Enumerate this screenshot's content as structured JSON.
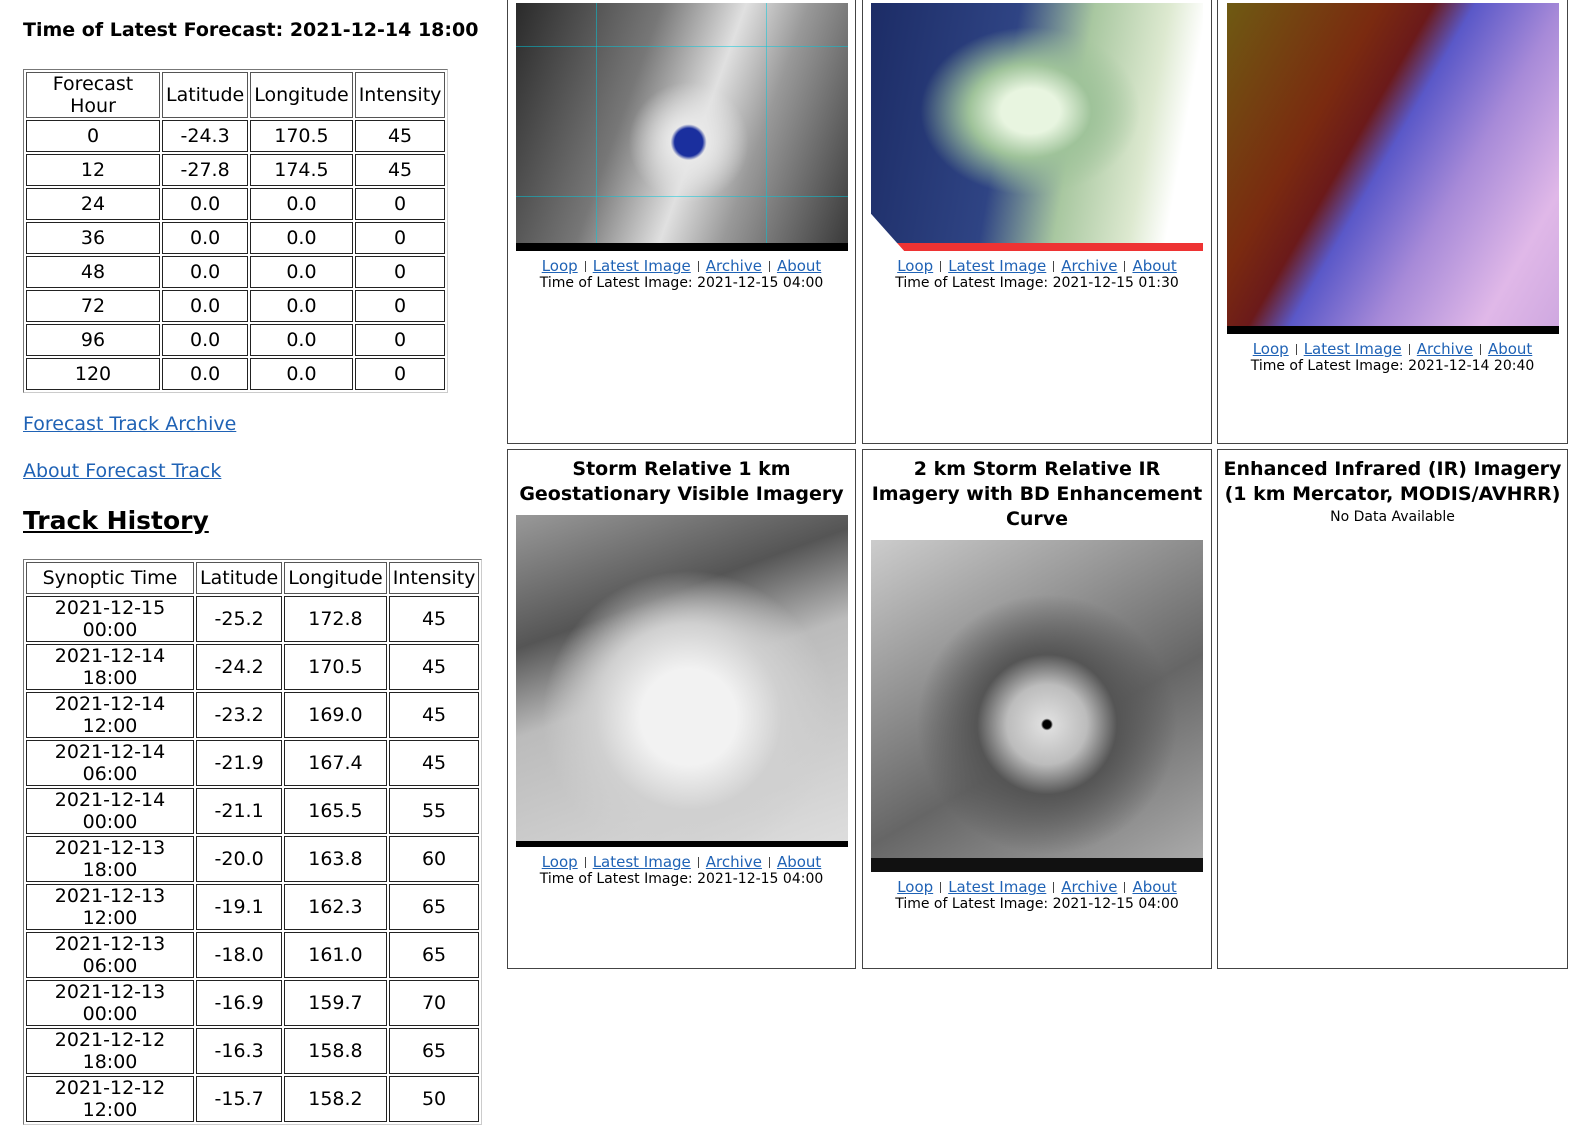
{
  "forecast": {
    "heading": "Time of Latest Forecast: 2021-12-14 18:00",
    "table": {
      "columns": [
        "Forecast Hour",
        "Latitude",
        "Longitude",
        "Intensity"
      ],
      "rows": [
        [
          "0",
          "-24.3",
          "170.5",
          "45"
        ],
        [
          "12",
          "-27.8",
          "174.5",
          "45"
        ],
        [
          "24",
          "0.0",
          "0.0",
          "0"
        ],
        [
          "36",
          "0.0",
          "0.0",
          "0"
        ],
        [
          "48",
          "0.0",
          "0.0",
          "0"
        ],
        [
          "72",
          "0.0",
          "0.0",
          "0"
        ],
        [
          "96",
          "0.0",
          "0.0",
          "0"
        ],
        [
          "120",
          "0.0",
          "0.0",
          "0"
        ]
      ]
    }
  },
  "links": [
    "Forecast Track Archive",
    "About Forecast Track"
  ],
  "track_history": {
    "title": "Track History",
    "table": {
      "columns": [
        "Synoptic Time",
        "Latitude",
        "Longitude",
        "Intensity"
      ],
      "rows": [
        [
          "2021-12-15 00:00",
          "-25.2",
          "172.8",
          "45"
        ],
        [
          "2021-12-14 18:00",
          "-24.2",
          "170.5",
          "45"
        ],
        [
          "2021-12-14 12:00",
          "-23.2",
          "169.0",
          "45"
        ],
        [
          "2021-12-14 06:00",
          "-21.9",
          "167.4",
          "45"
        ],
        [
          "2021-12-14 00:00",
          "-21.1",
          "165.5",
          "55"
        ],
        [
          "2021-12-13 18:00",
          "-20.0",
          "163.8",
          "60"
        ],
        [
          "2021-12-13 12:00",
          "-19.1",
          "162.3",
          "65"
        ],
        [
          "2021-12-13 06:00",
          "-18.0",
          "161.0",
          "65"
        ],
        [
          "2021-12-13 00:00",
          "-16.9",
          "159.7",
          "70"
        ],
        [
          "2021-12-12 18:00",
          "-16.3",
          "158.8",
          "65"
        ],
        [
          "2021-12-12 12:00",
          "-15.7",
          "158.2",
          "50"
        ]
      ]
    }
  },
  "panels": [
    {
      "links": [
        "Loop",
        "Latest Image",
        "Archive",
        "About"
      ],
      "time": "Time of Latest Image: 2021-12-15 04:00"
    },
    {
      "links": [
        "Loop",
        "Latest Image",
        "Archive",
        "About"
      ],
      "time": "Time of Latest Image: 2021-12-15 01:30"
    },
    {
      "links": [
        "Loop",
        "Latest Image",
        "Archive",
        "About"
      ],
      "time": "Time of Latest Image: 2021-12-14 20:40"
    },
    {
      "title": "Storm Relative 1 km Geostationary Visible Imagery",
      "links": [
        "Loop",
        "Latest Image",
        "Archive",
        "About"
      ],
      "time": "Time of Latest Image: 2021-12-15 04:00"
    },
    {
      "title": "2 km Storm Relative IR Imagery with BD Enhancement Curve",
      "links": [
        "Loop",
        "Latest Image",
        "Archive",
        "About"
      ],
      "time": "Time of Latest Image: 2021-12-15 04:00"
    },
    {
      "title": "Enhanced Infrared (IR) Imagery (1 km Mercator, MODIS/AVHRR)",
      "status": "No Data Available"
    }
  ]
}
